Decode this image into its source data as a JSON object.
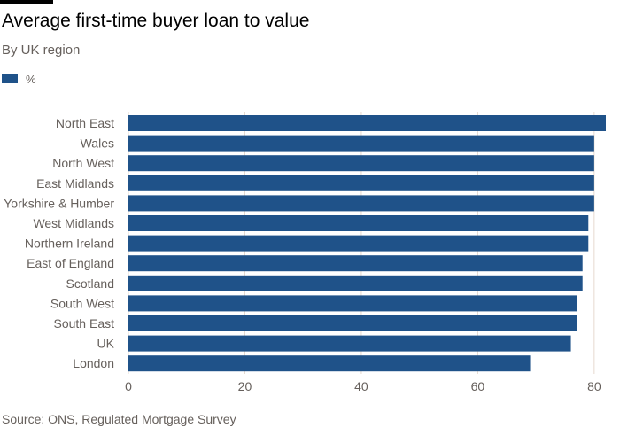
{
  "title": "Average first-time buyer loan to value",
  "subtitle": "By UK region",
  "legend": {
    "label": "%"
  },
  "source": "Source: ONS, Regulated Mortgage Survey",
  "colors": {
    "bar": "#1f5289",
    "axis_text": "#66605c",
    "gridline": "#e6d9ce"
  },
  "chart_data": {
    "type": "bar",
    "orientation": "horizontal",
    "categories": [
      "North East",
      "Wales",
      "North West",
      "East Midlands",
      "Yorkshire & Humber",
      "West Midlands",
      "Northern Ireland",
      "East of England",
      "Scotland",
      "South West",
      "South East",
      "UK",
      "London"
    ],
    "series": [
      {
        "name": "%",
        "values": [
          82,
          80,
          80,
          80,
          80,
          79,
          79,
          78,
          78,
          77,
          77,
          76,
          69
        ]
      }
    ],
    "title": "Average first-time buyer loan to value",
    "subtitle": "By UK region",
    "xlabel": "",
    "ylabel": "",
    "xlim": [
      0,
      82
    ],
    "xticks": [
      0,
      20,
      40,
      60,
      80
    ],
    "xtick_labels": [
      "0",
      "20",
      "40",
      "60",
      "80"
    ],
    "grid": true,
    "legend_position": "top-left"
  }
}
